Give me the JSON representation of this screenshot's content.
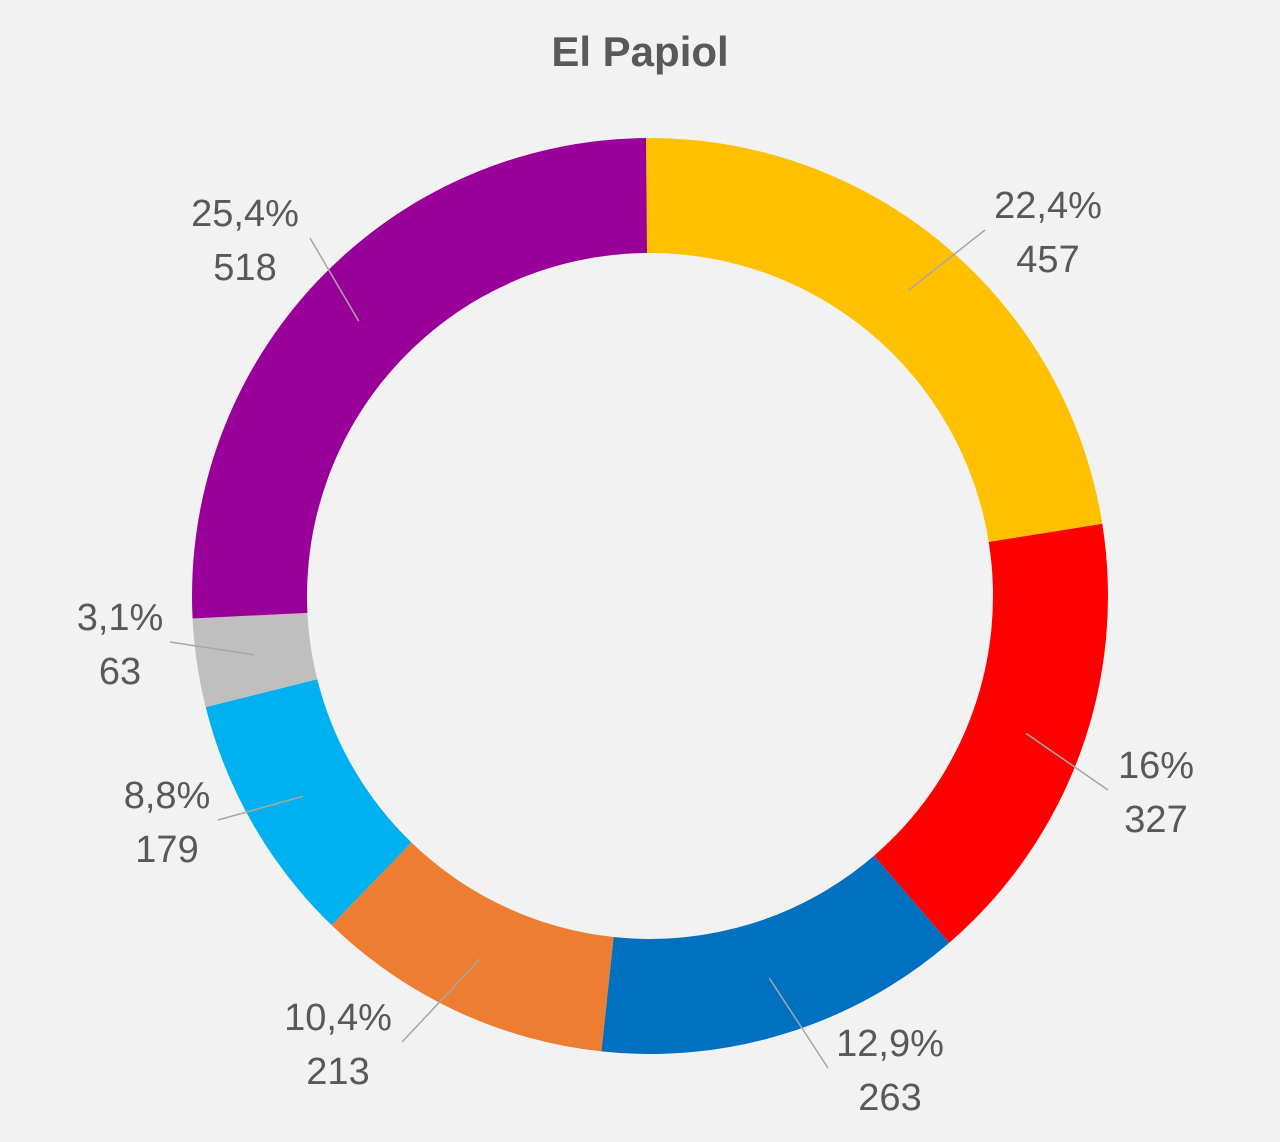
{
  "chart_data": {
    "type": "pie",
    "title": "El Papiol",
    "slices": [
      {
        "value": 457,
        "percent_label": "22,4%",
        "value_label": "457",
        "color": "#FFC000"
      },
      {
        "value": 327,
        "percent_label": "16%",
        "value_label": "327",
        "color": "#FF0000"
      },
      {
        "value": 263,
        "percent_label": "12,9%",
        "value_label": "263",
        "color": "#0070C0"
      },
      {
        "value": 213,
        "percent_label": "10,4%",
        "value_label": "213",
        "color": "#ED7D31"
      },
      {
        "value": 179,
        "percent_label": "8,8%",
        "value_label": "179",
        "color": "#00B0F0"
      },
      {
        "value": 63,
        "percent_label": "3,1%",
        "value_label": "63",
        "color": "#BFBFBF"
      },
      {
        "value": 518,
        "percent_label": "25,4%",
        "value_label": "518",
        "color": "#990099"
      }
    ]
  }
}
